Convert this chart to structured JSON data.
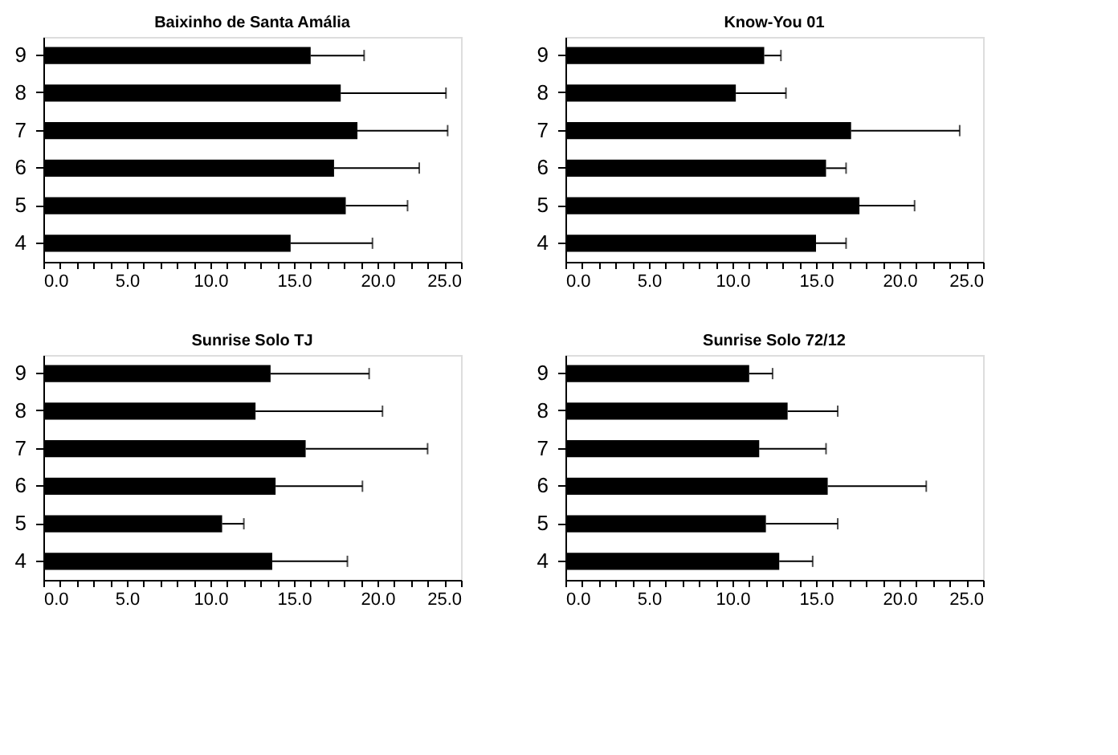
{
  "chart_data": [
    {
      "type": "bar",
      "orientation": "horizontal",
      "title": "Baixinho de Santa Amália",
      "categories": [
        "9",
        "8",
        "7",
        "6",
        "5",
        "4"
      ],
      "values": [
        16.0,
        17.8,
        18.8,
        17.4,
        18.1,
        14.8
      ],
      "errors": [
        [
          16.0,
          19.2
        ],
        [
          17.8,
          24.1
        ],
        [
          18.8,
          24.2
        ],
        [
          17.4,
          22.5
        ],
        [
          18.1,
          21.8
        ],
        [
          14.8,
          19.7
        ]
      ],
      "color": "#000000",
      "xlim": [
        0,
        25
      ],
      "xticks": [
        {
          "value": 0,
          "label": "0.0"
        },
        {
          "value": 1,
          "label": null
        },
        {
          "value": 2,
          "label": null
        },
        {
          "value": 3,
          "label": null
        },
        {
          "value": 4,
          "label": null
        },
        {
          "value": 5,
          "label": "5.0"
        },
        {
          "value": 6,
          "label": null
        },
        {
          "value": 7,
          "label": null
        },
        {
          "value": 8,
          "label": null
        },
        {
          "value": 9,
          "label": null
        },
        {
          "value": 10,
          "label": "10.0"
        },
        {
          "value": 11,
          "label": null
        },
        {
          "value": 12,
          "label": null
        },
        {
          "value": 13,
          "label": null
        },
        {
          "value": 14,
          "label": null
        },
        {
          "value": 15,
          "label": "15.0"
        },
        {
          "value": 16,
          "label": null
        },
        {
          "value": 17,
          "label": null
        },
        {
          "value": 18,
          "label": null
        },
        {
          "value": 19,
          "label": null
        },
        {
          "value": 20,
          "label": "20.0"
        },
        {
          "value": 21,
          "label": null
        },
        {
          "value": 22,
          "label": null
        },
        {
          "value": 23,
          "label": null
        },
        {
          "value": 24,
          "label": null
        },
        {
          "value": 25,
          "label": "25.0"
        }
      ],
      "grid": false
    },
    {
      "type": "bar",
      "orientation": "horizontal",
      "title": "Know-You 01",
      "categories": [
        "9",
        "8",
        "7",
        "6",
        "5",
        "4"
      ],
      "values": [
        11.9,
        10.2,
        17.1,
        15.6,
        17.6,
        15.0
      ],
      "errors": [
        [
          11.9,
          12.9
        ],
        [
          10.2,
          13.2
        ],
        [
          17.1,
          23.6
        ],
        [
          15.6,
          16.8
        ],
        [
          17.6,
          20.9
        ],
        [
          15.0,
          16.8
        ]
      ],
      "color": "#000000",
      "xlim": [
        0,
        25
      ],
      "xticks": [
        {
          "value": 0,
          "label": "0.0"
        },
        {
          "value": 1,
          "label": null
        },
        {
          "value": 2,
          "label": null
        },
        {
          "value": 3,
          "label": null
        },
        {
          "value": 4,
          "label": null
        },
        {
          "value": 5,
          "label": "5.0"
        },
        {
          "value": 6,
          "label": null
        },
        {
          "value": 7,
          "label": null
        },
        {
          "value": 8,
          "label": null
        },
        {
          "value": 9,
          "label": null
        },
        {
          "value": 10,
          "label": "10.0"
        },
        {
          "value": 11,
          "label": null
        },
        {
          "value": 12,
          "label": null
        },
        {
          "value": 13,
          "label": null
        },
        {
          "value": 14,
          "label": null
        },
        {
          "value": 15,
          "label": "15.0"
        },
        {
          "value": 16,
          "label": null
        },
        {
          "value": 17,
          "label": null
        },
        {
          "value": 18,
          "label": null
        },
        {
          "value": 19,
          "label": null
        },
        {
          "value": 20,
          "label": "20.0"
        },
        {
          "value": 21,
          "label": null
        },
        {
          "value": 22,
          "label": null
        },
        {
          "value": 23,
          "label": null
        },
        {
          "value": 24,
          "label": null
        },
        {
          "value": 25,
          "label": "25.0"
        }
      ],
      "grid": false
    },
    {
      "type": "bar",
      "orientation": "horizontal",
      "title": "Sunrise Solo TJ",
      "categories": [
        "9",
        "8",
        "7",
        "6",
        "5",
        "4"
      ],
      "values": [
        13.6,
        12.7,
        15.7,
        13.9,
        10.7,
        13.7
      ],
      "errors": [
        [
          13.6,
          19.5
        ],
        [
          12.7,
          20.3
        ],
        [
          15.7,
          23.0
        ],
        [
          13.9,
          19.1
        ],
        [
          10.7,
          12.0
        ],
        [
          13.7,
          18.2
        ]
      ],
      "color": "#000000",
      "xlim": [
        0,
        25
      ],
      "xticks": [
        {
          "value": 0,
          "label": "0.0"
        },
        {
          "value": 1,
          "label": null
        },
        {
          "value": 2,
          "label": null
        },
        {
          "value": 3,
          "label": null
        },
        {
          "value": 4,
          "label": null
        },
        {
          "value": 5,
          "label": "5.0"
        },
        {
          "value": 6,
          "label": null
        },
        {
          "value": 7,
          "label": null
        },
        {
          "value": 8,
          "label": null
        },
        {
          "value": 9,
          "label": null
        },
        {
          "value": 10,
          "label": "10.0"
        },
        {
          "value": 11,
          "label": null
        },
        {
          "value": 12,
          "label": null
        },
        {
          "value": 13,
          "label": null
        },
        {
          "value": 14,
          "label": null
        },
        {
          "value": 15,
          "label": "15.0"
        },
        {
          "value": 16,
          "label": null
        },
        {
          "value": 17,
          "label": null
        },
        {
          "value": 18,
          "label": null
        },
        {
          "value": 19,
          "label": null
        },
        {
          "value": 20,
          "label": "20.0"
        },
        {
          "value": 21,
          "label": null
        },
        {
          "value": 22,
          "label": null
        },
        {
          "value": 23,
          "label": null
        },
        {
          "value": 24,
          "label": null
        },
        {
          "value": 25,
          "label": "25.0"
        }
      ],
      "grid": false
    },
    {
      "type": "bar",
      "orientation": "horizontal",
      "title": "Sunrise Solo 72/12",
      "categories": [
        "9",
        "8",
        "7",
        "6",
        "5",
        "4"
      ],
      "values": [
        11.0,
        13.3,
        11.6,
        15.7,
        12.0,
        12.8
      ],
      "errors": [
        [
          11.0,
          12.4
        ],
        [
          13.3,
          16.3
        ],
        [
          11.6,
          15.6
        ],
        [
          15.7,
          21.6
        ],
        [
          12.0,
          16.3
        ],
        [
          12.8,
          14.8
        ]
      ],
      "color": "#000000",
      "xlim": [
        0,
        25
      ],
      "xticks": [
        {
          "value": 0,
          "label": "0.0"
        },
        {
          "value": 1,
          "label": null
        },
        {
          "value": 2,
          "label": null
        },
        {
          "value": 3,
          "label": null
        },
        {
          "value": 4,
          "label": null
        },
        {
          "value": 5,
          "label": "5.0"
        },
        {
          "value": 6,
          "label": null
        },
        {
          "value": 7,
          "label": null
        },
        {
          "value": 8,
          "label": null
        },
        {
          "value": 9,
          "label": null
        },
        {
          "value": 10,
          "label": "10.0"
        },
        {
          "value": 11,
          "label": null
        },
        {
          "value": 12,
          "label": null
        },
        {
          "value": 13,
          "label": null
        },
        {
          "value": 14,
          "label": null
        },
        {
          "value": 15,
          "label": "15.0"
        },
        {
          "value": 16,
          "label": null
        },
        {
          "value": 17,
          "label": null
        },
        {
          "value": 18,
          "label": null
        },
        {
          "value": 19,
          "label": null
        },
        {
          "value": 20,
          "label": "20.0"
        },
        {
          "value": 21,
          "label": null
        },
        {
          "value": 22,
          "label": null
        },
        {
          "value": 23,
          "label": null
        },
        {
          "value": 24,
          "label": null
        },
        {
          "value": 25,
          "label": "25.0"
        }
      ],
      "grid": false
    }
  ]
}
